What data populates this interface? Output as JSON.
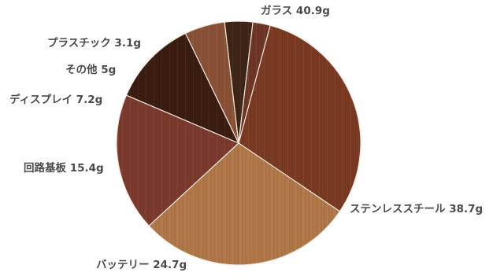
{
  "chart_data": {
    "type": "pie",
    "title": "",
    "slices": [
      {
        "label": "ガラス 40.9g",
        "name": "ガラス",
        "value": 40.9,
        "color": "#7a3a22"
      },
      {
        "label": "ステンレススチール 38.7g",
        "name": "ステンレススチール",
        "value": 38.7,
        "color": "#b07748"
      },
      {
        "label": "バッテリー 24.7g",
        "name": "バッテリー",
        "value": 24.7,
        "color": "#7b3a2c"
      },
      {
        "label": "回路基板 15.4g",
        "name": "回路基板",
        "value": 15.4,
        "color": "#3a1d10"
      },
      {
        "label": "ディスプレイ 7.2g",
        "name": "ディスプレイ",
        "value": 7.2,
        "color": "#8a5136"
      },
      {
        "label": "その他 5g",
        "name": "その他",
        "value": 5,
        "color": "#3e2518"
      },
      {
        "label": "プラスチック 3.1g",
        "name": "プラスチック",
        "value": 3.1,
        "color": "#6e3626"
      }
    ],
    "legend": "none"
  }
}
